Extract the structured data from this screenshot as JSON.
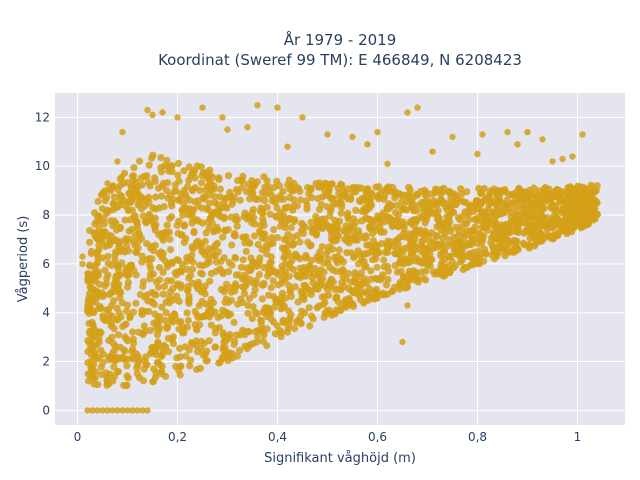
{
  "chart_data": {
    "type": "scatter",
    "title_lines": [
      "År 1979 - 2019",
      "Koordinat (Sweref 99 TM): E 466849, N 6208423"
    ],
    "xlabel": "Signifikant våghöjd (m)",
    "ylabel": "Vågperiod (s)",
    "xlim": [
      -0.045,
      1.095
    ],
    "ylim": [
      -0.6,
      13.0
    ],
    "x_ticks": [
      0,
      0.2,
      0.4,
      0.6,
      0.8,
      1
    ],
    "x_tick_labels": [
      "0",
      "0,2",
      "0,4",
      "0,6",
      "0,8",
      "1"
    ],
    "y_ticks": [
      0,
      2,
      4,
      6,
      8,
      10,
      12
    ],
    "y_tick_labels": [
      "0",
      "2",
      "4",
      "6",
      "8",
      "10",
      "12"
    ],
    "grid": true,
    "colors": {
      "marker": "#D4A017",
      "plot_bg": "#E5E5F0",
      "grid": "#ffffff",
      "text": "#2a3f5f"
    },
    "series": [
      {
        "marker_color": "#D4A017",
        "density_envelope": {
          "x": [
            0.02,
            0.05,
            0.1,
            0.15,
            0.2,
            0.3,
            0.4,
            0.5,
            0.6,
            0.7,
            0.8,
            0.9,
            1.0,
            1.04
          ],
          "y_lower": [
            1.1,
            1.0,
            1.0,
            1.1,
            1.4,
            2.0,
            2.8,
            3.8,
            4.6,
            5.3,
            5.9,
            6.6,
            7.4,
            7.8
          ],
          "y_upper": [
            7.5,
            9.0,
            10.0,
            10.5,
            10.2,
            9.8,
            9.5,
            9.3,
            9.2,
            9.1,
            9.1,
            9.1,
            9.2,
            9.3
          ]
        },
        "points": [
          [
            0.02,
            0
          ],
          [
            0.03,
            0
          ],
          [
            0.04,
            0
          ],
          [
            0.05,
            0
          ],
          [
            0.06,
            0
          ],
          [
            0.07,
            0
          ],
          [
            0.08,
            0
          ],
          [
            0.09,
            0
          ],
          [
            0.1,
            0
          ],
          [
            0.11,
            0
          ],
          [
            0.12,
            0
          ],
          [
            0.13,
            0
          ],
          [
            0.14,
            0
          ],
          [
            0.14,
            12.3
          ],
          [
            0.15,
            12.1
          ],
          [
            0.17,
            12.2
          ],
          [
            0.2,
            12.0
          ],
          [
            0.25,
            12.4
          ],
          [
            0.29,
            12.0
          ],
          [
            0.36,
            12.5
          ],
          [
            0.4,
            12.4
          ],
          [
            0.45,
            12.0
          ],
          [
            0.5,
            11.3
          ],
          [
            0.55,
            11.2
          ],
          [
            0.6,
            11.4
          ],
          [
            0.66,
            12.2
          ],
          [
            0.68,
            12.4
          ],
          [
            0.75,
            11.2
          ],
          [
            0.81,
            11.3
          ],
          [
            0.86,
            11.4
          ],
          [
            0.9,
            11.4
          ],
          [
            0.93,
            11.1
          ],
          [
            1.01,
            11.3
          ],
          [
            0.99,
            10.4
          ],
          [
            0.95,
            10.2
          ],
          [
            0.03,
            3.5
          ],
          [
            0.02,
            2.4
          ],
          [
            0.04,
            2.7
          ],
          [
            0.36,
            3.0
          ],
          [
            0.65,
            2.8
          ],
          [
            0.66,
            4.3
          ],
          [
            0.06,
            9.3
          ],
          [
            0.05,
            8.9
          ],
          [
            0.08,
            10.2
          ],
          [
            0.09,
            11.4
          ],
          [
            0.3,
            11.5
          ],
          [
            0.34,
            11.6
          ],
          [
            0.42,
            10.8
          ],
          [
            0.58,
            10.9
          ],
          [
            0.62,
            10.1
          ],
          [
            0.71,
            10.6
          ],
          [
            0.8,
            10.5
          ],
          [
            0.88,
            10.9
          ],
          [
            0.97,
            10.3
          ],
          [
            1.03,
            8.9
          ],
          [
            1.04,
            8.5
          ],
          [
            1.02,
            7.6
          ],
          [
            0.01,
            6.0
          ],
          [
            0.02,
            5.6
          ],
          [
            0.01,
            6.3
          ]
        ]
      }
    ]
  }
}
